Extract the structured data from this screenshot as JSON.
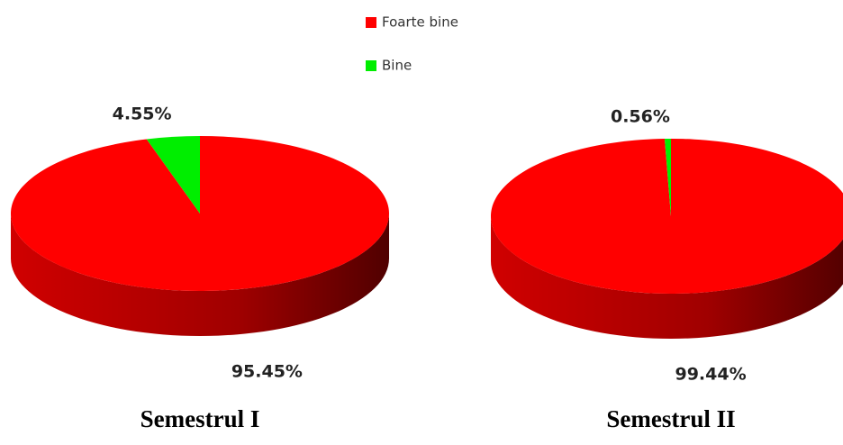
{
  "chart_data": [
    {
      "type": "pie",
      "title": "Semestrul I",
      "categories": [
        "Foarte bine",
        "Bine"
      ],
      "values": [
        95.45,
        4.55
      ],
      "value_labels": [
        "95.45%",
        "4.55%"
      ],
      "colors": [
        "#ff0000",
        "#00ee00"
      ]
    },
    {
      "type": "pie",
      "title": "Semestrul II",
      "categories": [
        "Foarte bine",
        "Bine"
      ],
      "values": [
        99.44,
        0.56
      ],
      "value_labels": [
        "99.44%",
        "0.56%"
      ],
      "colors": [
        "#ff0000",
        "#00ee00"
      ]
    }
  ]
}
